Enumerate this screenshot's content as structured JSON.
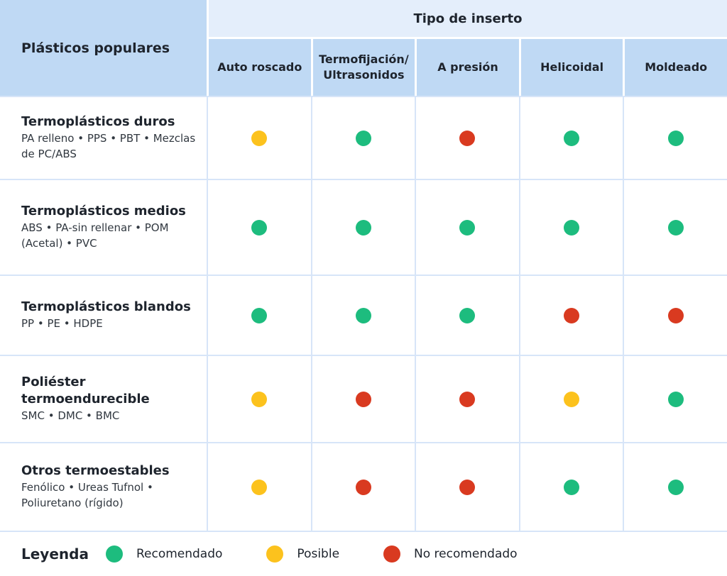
{
  "colors": {
    "green": "#1DBC7E",
    "yellow": "#FCC21D",
    "red": "#D93A20",
    "header_blue": "#BFD9F4",
    "band_blue": "#E4EEFB",
    "grid_line": "#D7E5F8"
  },
  "status_colors": {
    "recommended": "green",
    "possible": "yellow",
    "not_recommended": "red"
  },
  "header": {
    "row_header": "Plásticos populares",
    "group_header": "Tipo de inserto",
    "columns": [
      "Auto roscado",
      "Termofijación/ Ultrasonidos",
      "A presión",
      "Helicoidal",
      "Moldeado"
    ]
  },
  "rows": [
    {
      "title": "Termoplásticos duros",
      "subtitle": "PA relleno • PPS • PBT • Mezclas de PC/ABS",
      "values": [
        "possible",
        "recommended",
        "not_recommended",
        "recommended",
        "recommended"
      ]
    },
    {
      "title": "Termoplásticos medios",
      "subtitle": "ABS • PA-sin rellenar • POM (Acetal) • PVC",
      "values": [
        "recommended",
        "recommended",
        "recommended",
        "recommended",
        "recommended"
      ]
    },
    {
      "title": "Termoplásticos blandos",
      "subtitle": "PP • PE • HDPE",
      "values": [
        "recommended",
        "recommended",
        "recommended",
        "not_recommended",
        "not_recommended"
      ]
    },
    {
      "title": "Poliéster termoendurecible",
      "subtitle": "SMC • DMC • BMC",
      "values": [
        "possible",
        "not_recommended",
        "not_recommended",
        "possible",
        "recommended"
      ]
    },
    {
      "title": "Otros termoestables",
      "subtitle": "Fenólico • Ureas Tufnol • Poliuretano (rígido)",
      "values": [
        "possible",
        "not_recommended",
        "not_recommended",
        "recommended",
        "recommended"
      ]
    }
  ],
  "legend": {
    "title": "Leyenda",
    "items": [
      {
        "label": "Recomendado",
        "status": "recommended"
      },
      {
        "label": "Posible",
        "status": "possible"
      },
      {
        "label": "No recomendado",
        "status": "not_recommended"
      }
    ]
  },
  "chart_data": {
    "type": "table",
    "title": "Tipo de inserto",
    "row_header": "Plásticos populares",
    "columns": [
      "Auto roscado",
      "Termofijación/Ultrasonidos",
      "A presión",
      "Helicoidal",
      "Moldeado"
    ],
    "row_labels": [
      "Termoplásticos duros (PA relleno • PPS • PBT • Mezclas de PC/ABS)",
      "Termoplásticos medios (ABS • PA-sin rellenar • POM (Acetal) • PVC)",
      "Termoplásticos blandos (PP • PE • HDPE)",
      "Poliéster termoendurecible (SMC • DMC • BMC)",
      "Otros termoestables (Fenólico • Ureas Tufnol • Poliuretano (rígido))"
    ],
    "matrix": [
      [
        "Posible",
        "Recomendado",
        "No recomendado",
        "Recomendado",
        "Recomendado"
      ],
      [
        "Recomendado",
        "Recomendado",
        "Recomendado",
        "Recomendado",
        "Recomendado"
      ],
      [
        "Recomendado",
        "Recomendado",
        "Recomendado",
        "No recomendado",
        "No recomendado"
      ],
      [
        "Posible",
        "No recomendado",
        "No recomendado",
        "Posible",
        "Recomendado"
      ],
      [
        "Posible",
        "No recomendado",
        "No recomendado",
        "Recomendado",
        "Recomendado"
      ]
    ],
    "legend": {
      "Recomendado": "#1DBC7E",
      "Posible": "#FCC21D",
      "No recomendado": "#D93A20"
    },
    "legend_position": "bottom"
  }
}
